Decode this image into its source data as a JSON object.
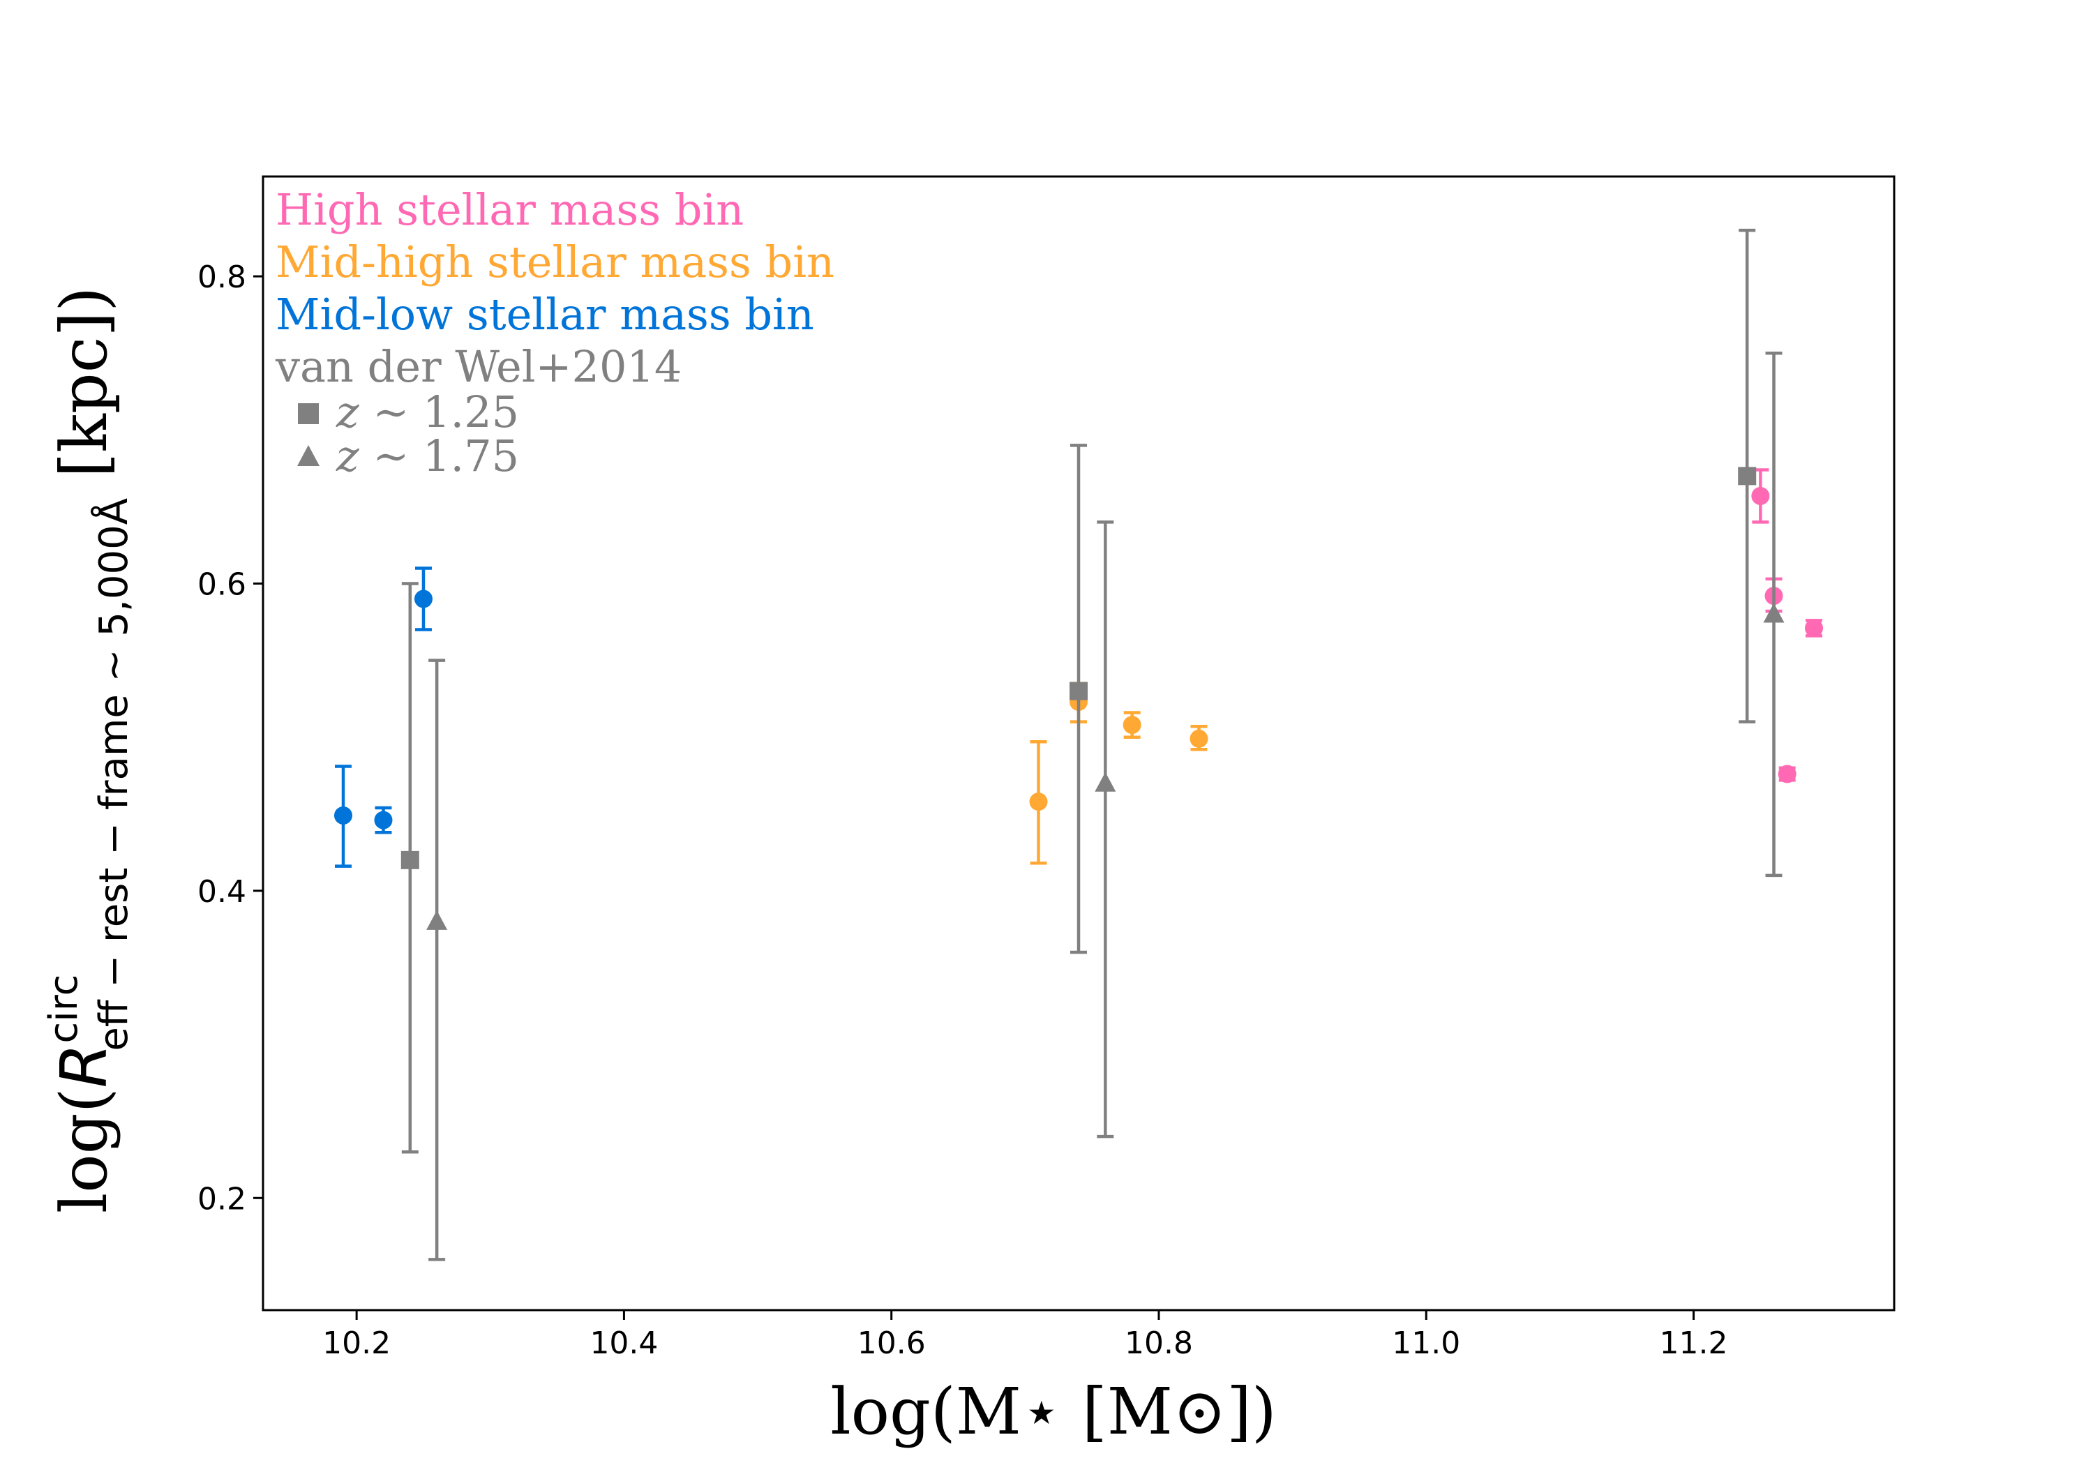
{
  "chart_data": {
    "type": "scatter",
    "title": "",
    "xlabel": "log(M⋆ [M⊙])",
    "ylabel": {
      "prefix": "log(",
      "symbol": "R",
      "superscript": "circ",
      "subscript": "eff − rest − frame ∼ 5,000Å",
      "suffix": " [kpc])"
    },
    "xlim": [
      10.13,
      11.35
    ],
    "ylim": [
      0.127,
      0.865
    ],
    "xticks": [
      10.2,
      10.4,
      10.6,
      10.8,
      11.0,
      11.2
    ],
    "xtick_labels": [
      "10.2",
      "10.4",
      "10.6",
      "10.8",
      "11.0",
      "11.2"
    ],
    "yticks": [
      0.2,
      0.4,
      0.6,
      0.8
    ],
    "ytick_labels": [
      "0.2",
      "0.4",
      "0.6",
      "0.8"
    ],
    "grid": false,
    "legend_position": "top-left",
    "series": [
      {
        "name": "High stellar mass bin",
        "color": "#ff69b4",
        "marker": "circle",
        "points": [
          {
            "x": 11.25,
            "y": 0.657,
            "yerr_low": 0.64,
            "yerr_high": 0.674
          },
          {
            "x": 11.26,
            "y": 0.592,
            "yerr_low": 0.582,
            "yerr_high": 0.603
          },
          {
            "x": 11.27,
            "y": 0.476,
            "yerr_low": 0.472,
            "yerr_high": 0.48
          },
          {
            "x": 11.29,
            "y": 0.571,
            "yerr_low": 0.566,
            "yerr_high": 0.576
          }
        ]
      },
      {
        "name": "Mid-high stellar mass bin",
        "color": "#ffa833",
        "marker": "circle",
        "points": [
          {
            "x": 10.71,
            "y": 0.458,
            "yerr_low": 0.418,
            "yerr_high": 0.497
          },
          {
            "x": 10.74,
            "y": 0.523,
            "yerr_low": 0.51,
            "yerr_high": 0.535
          },
          {
            "x": 10.78,
            "y": 0.508,
            "yerr_low": 0.5,
            "yerr_high": 0.516
          },
          {
            "x": 10.83,
            "y": 0.499,
            "yerr_low": 0.492,
            "yerr_high": 0.507
          }
        ]
      },
      {
        "name": "Mid-low stellar mass bin",
        "color": "#0074d9",
        "marker": "circle",
        "points": [
          {
            "x": 10.19,
            "y": 0.449,
            "yerr_low": 0.416,
            "yerr_high": 0.481
          },
          {
            "x": 10.22,
            "y": 0.446,
            "yerr_low": 0.438,
            "yerr_high": 0.454
          },
          {
            "x": 10.25,
            "y": 0.59,
            "yerr_low": 0.57,
            "yerr_high": 0.61
          }
        ]
      },
      {
        "name": "van der Wel+2014 z ~ 1.25",
        "color": "#808080",
        "marker": "square",
        "points": [
          {
            "x": 10.24,
            "y": 0.42,
            "yerr_low": 0.23,
            "yerr_high": 0.6
          },
          {
            "x": 10.74,
            "y": 0.53,
            "yerr_low": 0.36,
            "yerr_high": 0.69
          },
          {
            "x": 11.24,
            "y": 0.67,
            "yerr_low": 0.51,
            "yerr_high": 0.83
          }
        ]
      },
      {
        "name": "van der Wel+2014 z ~ 1.75",
        "color": "#808080",
        "marker": "triangle",
        "points": [
          {
            "x": 10.26,
            "y": 0.38,
            "yerr_low": 0.16,
            "yerr_high": 0.55
          },
          {
            "x": 10.76,
            "y": 0.47,
            "yerr_low": 0.24,
            "yerr_high": 0.64
          },
          {
            "x": 11.26,
            "y": 0.58,
            "yerr_low": 0.41,
            "yerr_high": 0.75
          }
        ]
      }
    ],
    "legend": {
      "entries": [
        {
          "text": "High stellar mass bin",
          "color": "#ff69b4"
        },
        {
          "text": "Mid-high stellar mass bin",
          "color": "#ffa833"
        },
        {
          "text": "Mid-low stellar mass bin",
          "color": "#0074d9"
        },
        {
          "text": "van der Wel+2014",
          "color": "#808080"
        }
      ],
      "sub_entries": [
        {
          "marker": "square",
          "symbol": "z",
          "text": " ∼ 1.25",
          "color": "#808080"
        },
        {
          "marker": "triangle",
          "symbol": "z",
          "text": " ∼ 1.75",
          "color": "#808080"
        }
      ]
    }
  }
}
